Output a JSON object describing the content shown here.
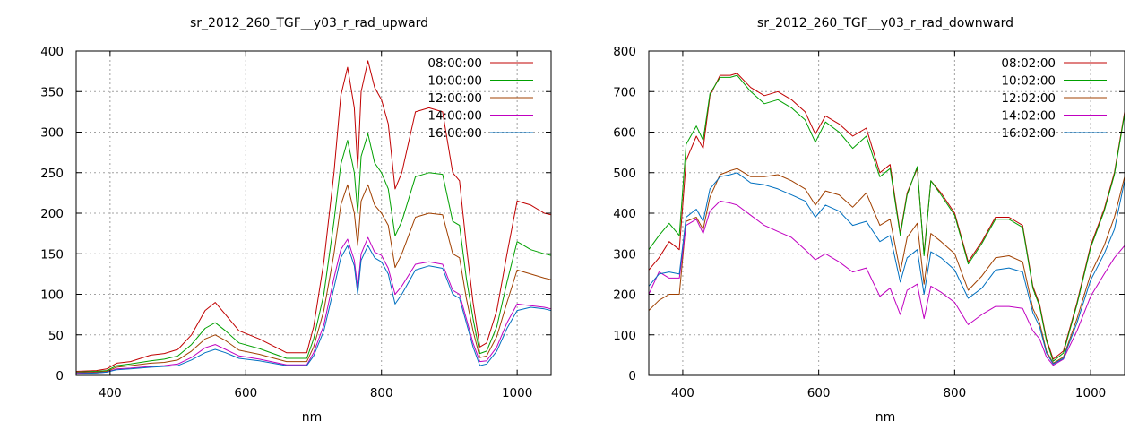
{
  "colors": {
    "c1": "#c00000",
    "c2": "#00a000",
    "c3": "#0070c0",
    "c4": "#c000c0",
    "c5": "#00b0e0",
    "c6": "#a04000"
  },
  "chart_data": [
    {
      "type": "line",
      "title": "sr_2012_260_TGF__y03_r_rad_upward",
      "xlabel": "nm",
      "ylabel": "",
      "xlim": [
        350,
        1050
      ],
      "ylim": [
        0,
        400
      ],
      "xticks": [
        400,
        600,
        800,
        1000
      ],
      "yticks": [
        0,
        50,
        100,
        150,
        200,
        250,
        300,
        350,
        400
      ],
      "grid": true,
      "legend_position": "top-right",
      "x": [
        350,
        380,
        395,
        410,
        430,
        460,
        480,
        500,
        520,
        540,
        555,
        570,
        590,
        620,
        660,
        690,
        700,
        715,
        730,
        740,
        750,
        760,
        765,
        770,
        780,
        790,
        800,
        810,
        820,
        830,
        850,
        870,
        890,
        905,
        915,
        925,
        935,
        945,
        955,
        970,
        985,
        1000,
        1020,
        1040,
        1050
      ],
      "series": [
        {
          "name": "08:00:00",
          "color_key": "c1",
          "values": [
            5,
            6,
            8,
            15,
            17,
            25,
            27,
            32,
            50,
            80,
            90,
            75,
            55,
            45,
            28,
            28,
            60,
            140,
            250,
            345,
            380,
            330,
            255,
            350,
            388,
            355,
            340,
            310,
            230,
            250,
            325,
            330,
            325,
            250,
            240,
            160,
            90,
            35,
            40,
            80,
            150,
            215,
            210,
            200,
            198
          ]
        },
        {
          "name": "10:00:00",
          "color_key": "c2",
          "values": [
            4,
            5,
            6,
            12,
            14,
            18,
            20,
            24,
            38,
            58,
            65,
            55,
            40,
            33,
            21,
            21,
            45,
            100,
            190,
            260,
            290,
            250,
            200,
            270,
            298,
            262,
            250,
            230,
            172,
            190,
            245,
            250,
            248,
            190,
            185,
            120,
            70,
            27,
            30,
            60,
            115,
            165,
            155,
            150,
            148
          ]
        },
        {
          "name": "12:00:00",
          "color_key": "c6",
          "values": [
            3,
            4,
            5,
            10,
            12,
            15,
            16,
            19,
            30,
            45,
            50,
            43,
            31,
            26,
            17,
            17,
            35,
            80,
            150,
            210,
            235,
            200,
            160,
            215,
            235,
            210,
            200,
            185,
            133,
            150,
            195,
            200,
            198,
            150,
            145,
            95,
            55,
            22,
            24,
            48,
            90,
            130,
            125,
            120,
            118
          ]
        },
        {
          "name": "14:00:00",
          "color_key": "c4",
          "values": [
            3,
            3,
            4,
            8,
            9,
            11,
            12,
            14,
            22,
            34,
            38,
            32,
            24,
            20,
            13,
            13,
            28,
            62,
            120,
            155,
            168,
            142,
            108,
            150,
            170,
            152,
            148,
            132,
            100,
            110,
            137,
            140,
            137,
            105,
            100,
            70,
            40,
            17,
            18,
            35,
            65,
            88,
            86,
            84,
            82
          ]
        },
        {
          "name": "16:00:00",
          "color_key": "c3",
          "values": [
            2,
            3,
            4,
            7,
            8,
            10,
            11,
            12,
            19,
            28,
            32,
            28,
            21,
            18,
            12,
            12,
            24,
            55,
            108,
            145,
            160,
            135,
            100,
            142,
            160,
            145,
            140,
            125,
            88,
            100,
            130,
            135,
            132,
            100,
            95,
            65,
            35,
            12,
            14,
            30,
            58,
            80,
            84,
            82,
            80
          ]
        }
      ]
    },
    {
      "type": "line",
      "title": "sr_2012_260_TGF__y03_r_rad_downward",
      "xlabel": "nm",
      "ylabel": "",
      "xlim": [
        350,
        1050
      ],
      "ylim": [
        0,
        800
      ],
      "xticks": [
        400,
        600,
        800,
        1000
      ],
      "yticks": [
        0,
        100,
        200,
        300,
        400,
        500,
        600,
        700,
        800
      ],
      "grid": true,
      "legend_position": "top-right",
      "x": [
        350,
        365,
        380,
        395,
        405,
        420,
        430,
        440,
        455,
        470,
        480,
        500,
        520,
        540,
        560,
        580,
        595,
        610,
        630,
        650,
        670,
        690,
        705,
        720,
        730,
        745,
        755,
        765,
        780,
        800,
        820,
        840,
        860,
        880,
        900,
        915,
        925,
        935,
        945,
        960,
        980,
        1000,
        1020,
        1035,
        1050
      ],
      "series": [
        {
          "name": "08:02:00",
          "color_key": "c1",
          "values": [
            260,
            290,
            330,
            310,
            530,
            590,
            560,
            690,
            740,
            740,
            745,
            710,
            690,
            700,
            680,
            650,
            595,
            640,
            620,
            590,
            610,
            500,
            520,
            350,
            450,
            510,
            300,
            480,
            450,
            400,
            280,
            330,
            390,
            390,
            370,
            220,
            175,
            90,
            40,
            60,
            180,
            320,
            410,
            500,
            650
          ]
        },
        {
          "name": "10:02:00",
          "color_key": "c2",
          "values": [
            310,
            345,
            375,
            345,
            570,
            615,
            580,
            695,
            735,
            735,
            740,
            700,
            670,
            680,
            660,
            630,
            575,
            625,
            600,
            560,
            590,
            490,
            510,
            345,
            445,
            515,
            295,
            480,
            445,
            395,
            275,
            325,
            385,
            385,
            365,
            215,
            170,
            85,
            35,
            55,
            175,
            315,
            405,
            495,
            645
          ]
        },
        {
          "name": "12:02:00",
          "color_key": "c6",
          "values": [
            160,
            185,
            200,
            200,
            380,
            390,
            360,
            440,
            495,
            505,
            510,
            490,
            490,
            495,
            480,
            460,
            420,
            455,
            445,
            415,
            450,
            370,
            385,
            255,
            340,
            375,
            225,
            350,
            330,
            300,
            210,
            245,
            290,
            295,
            280,
            165,
            130,
            60,
            30,
            45,
            140,
            250,
            320,
            390,
            490
          ]
        },
        {
          "name": "14:02:00",
          "color_key": "c4",
          "values": [
            200,
            255,
            240,
            240,
            370,
            385,
            350,
            405,
            430,
            425,
            420,
            395,
            370,
            355,
            340,
            310,
            285,
            300,
            280,
            255,
            265,
            195,
            215,
            150,
            210,
            225,
            140,
            220,
            205,
            180,
            125,
            150,
            170,
            170,
            165,
            110,
            90,
            45,
            25,
            40,
            110,
            195,
            250,
            290,
            320
          ]
        },
        {
          "name": "16:02:00",
          "color_key": "c3",
          "values": [
            220,
            250,
            255,
            250,
            390,
            410,
            380,
            460,
            490,
            495,
            500,
            475,
            470,
            460,
            445,
            430,
            390,
            420,
            405,
            370,
            380,
            330,
            345,
            230,
            290,
            310,
            200,
            305,
            290,
            260,
            190,
            215,
            260,
            265,
            255,
            155,
            120,
            55,
            28,
            42,
            130,
            235,
            300,
            360,
            480
          ]
        }
      ]
    }
  ]
}
